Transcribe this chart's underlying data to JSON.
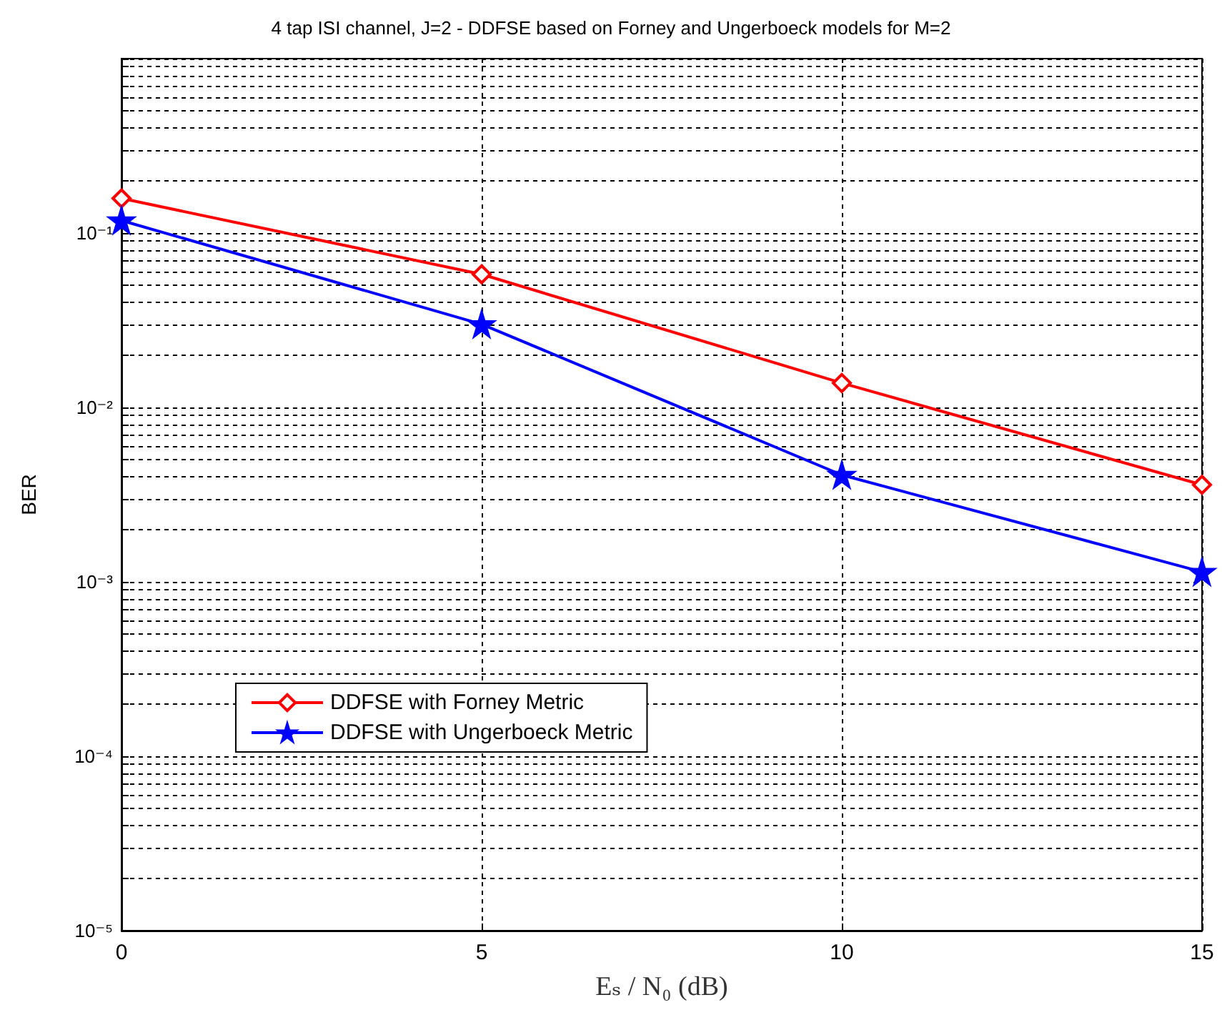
{
  "chart_data": {
    "type": "line",
    "title": "4 tap ISI channel, J=2 - DDFSE based on Forney and Ungerboeck models for M=2",
    "xlabel": "Eₛ / N₀ (dB)",
    "ylabel": "BER",
    "x": [
      0,
      5,
      10,
      15
    ],
    "series": [
      {
        "name": "DDFSE with Forney Metric",
        "color": "#ff0000",
        "marker": "diamond",
        "values": [
          0.158,
          0.058,
          0.0138,
          0.0036
        ]
      },
      {
        "name": "DDFSE with Ungerboeck Metric",
        "color": "#0000ff",
        "marker": "star",
        "values": [
          0.118,
          0.03,
          0.0041,
          0.00114
        ]
      }
    ],
    "log": "y",
    "xlim": [
      0,
      15
    ],
    "xticks": [
      0,
      5,
      10,
      15
    ],
    "ylim": [
      1e-05,
      1
    ],
    "yticks": [
      {
        "value": 1e-05,
        "label": "10⁻⁵"
      },
      {
        "value": 2e-05,
        "label": null
      },
      {
        "value": 3e-05,
        "label": null
      },
      {
        "value": 4e-05,
        "label": null
      },
      {
        "value": 5e-05,
        "label": null
      },
      {
        "value": 6e-05,
        "label": null
      },
      {
        "value": 7e-05,
        "label": null
      },
      {
        "value": 8e-05,
        "label": null
      },
      {
        "value": 9e-05,
        "label": null
      },
      {
        "value": 0.0001,
        "label": "10⁻⁴"
      },
      {
        "value": 0.0002,
        "label": null
      },
      {
        "value": 0.0003,
        "label": null
      },
      {
        "value": 0.0004,
        "label": null
      },
      {
        "value": 0.0005,
        "label": null
      },
      {
        "value": 0.0006,
        "label": null
      },
      {
        "value": 0.0007,
        "label": null
      },
      {
        "value": 0.0008,
        "label": null
      },
      {
        "value": 0.0009,
        "label": null
      },
      {
        "value": 0.001,
        "label": "10⁻³"
      },
      {
        "value": 0.002,
        "label": null
      },
      {
        "value": 0.003,
        "label": null
      },
      {
        "value": 0.004,
        "label": null
      },
      {
        "value": 0.005,
        "label": null
      },
      {
        "value": 0.006,
        "label": null
      },
      {
        "value": 0.007,
        "label": null
      },
      {
        "value": 0.008,
        "label": null
      },
      {
        "value": 0.009,
        "label": null
      },
      {
        "value": 0.01,
        "label": "10⁻²"
      },
      {
        "value": 0.02,
        "label": null
      },
      {
        "value": 0.03,
        "label": null
      },
      {
        "value": 0.04,
        "label": null
      },
      {
        "value": 0.05,
        "label": null
      },
      {
        "value": 0.06,
        "label": null
      },
      {
        "value": 0.07,
        "label": null
      },
      {
        "value": 0.08,
        "label": null
      },
      {
        "value": 0.09,
        "label": null
      },
      {
        "value": 0.1,
        "label": "10⁻¹"
      },
      {
        "value": 0.2,
        "label": null
      },
      {
        "value": 0.3,
        "label": null
      },
      {
        "value": 0.4,
        "label": null
      },
      {
        "value": 0.5,
        "label": null
      },
      {
        "value": 0.6,
        "label": null
      },
      {
        "value": 0.7,
        "label": null
      },
      {
        "value": 0.8,
        "label": null
      },
      {
        "value": 0.9,
        "label": null
      },
      {
        "value": 1,
        "label": null
      }
    ],
    "grid": true,
    "legend": "bottom left",
    "line_style": "solid"
  }
}
